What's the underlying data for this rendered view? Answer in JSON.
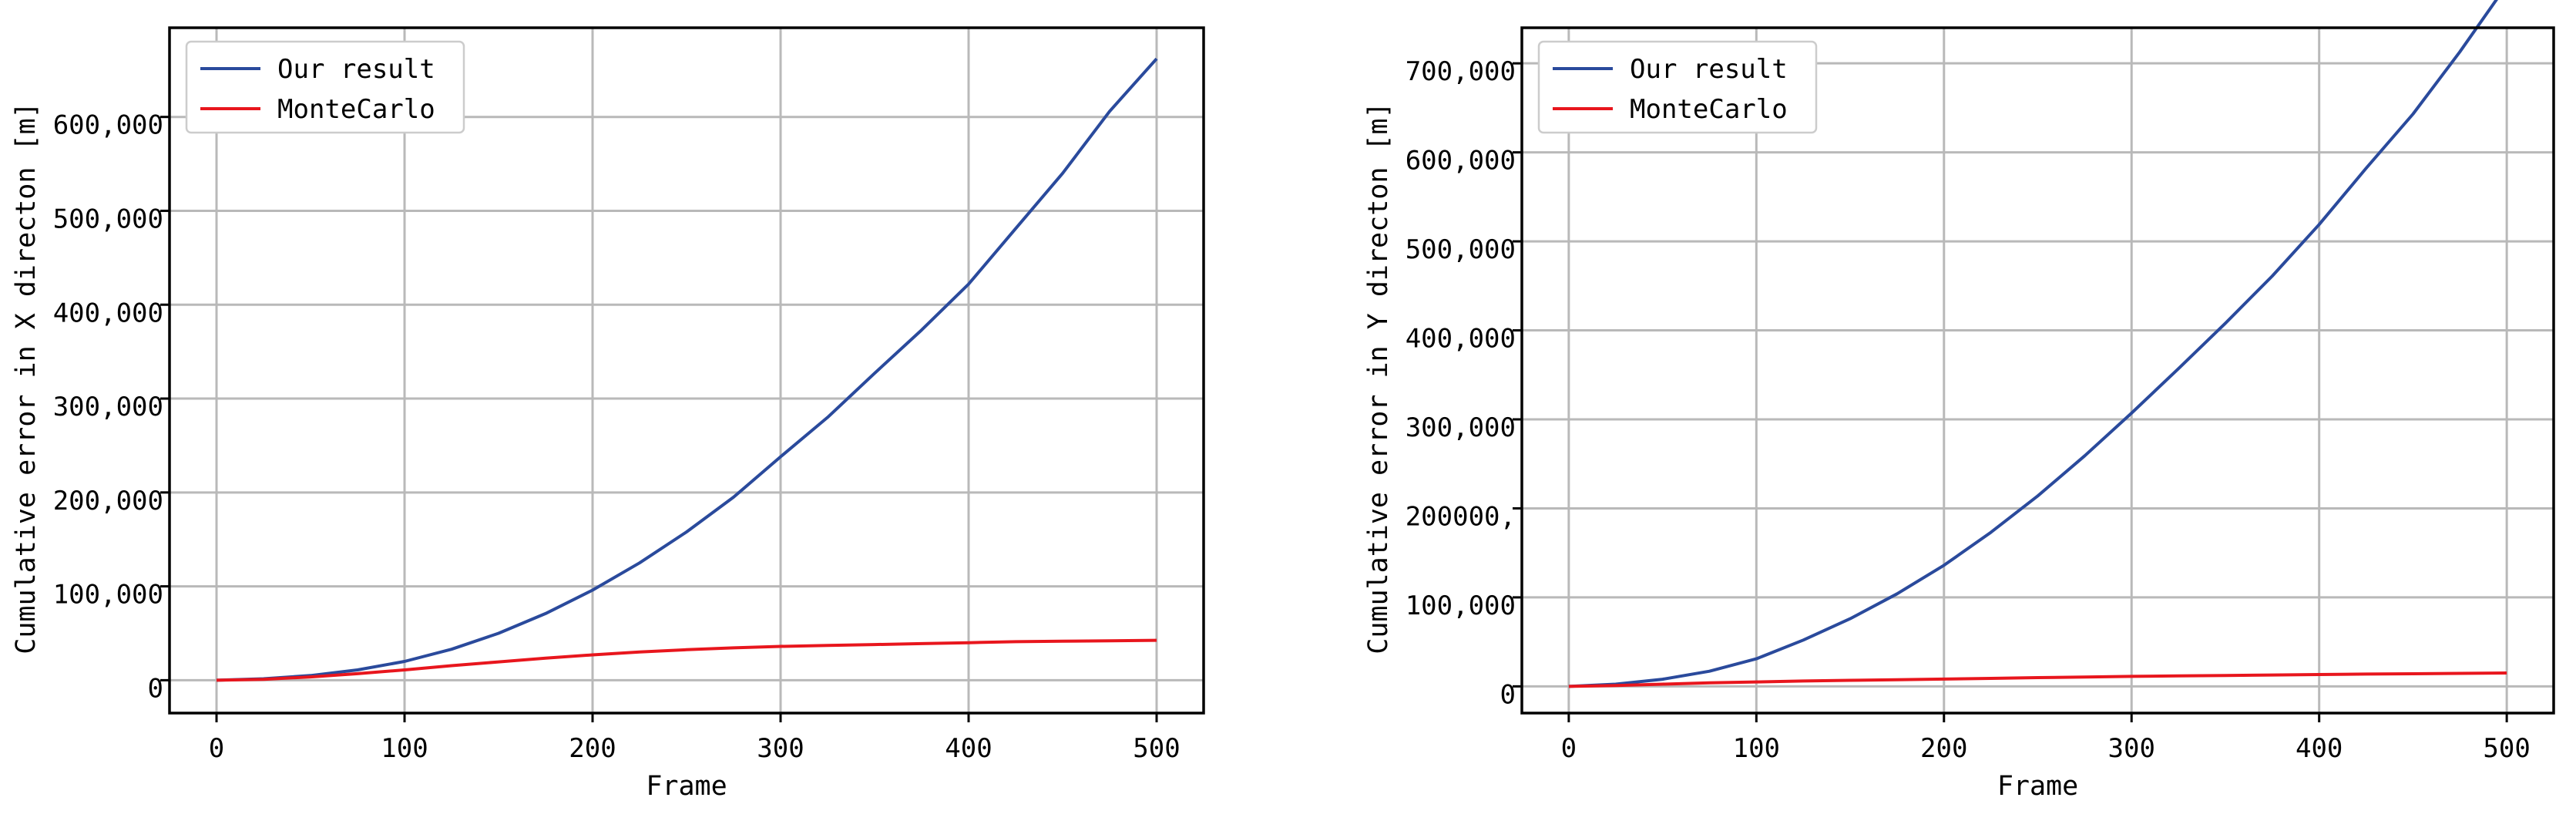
{
  "chart_data": [
    {
      "type": "line",
      "xlabel": "Frame",
      "ylabel": "Cumulative error in X directon [m]",
      "xlim": [
        -25,
        525
      ],
      "ylim": [
        -35000,
        695000
      ],
      "xticks": [
        0,
        100,
        200,
        300,
        400,
        500
      ],
      "xtick_labels": [
        "0",
        "100",
        "200",
        "300",
        "400",
        "500"
      ],
      "yticks": [
        0,
        100000,
        200000,
        300000,
        400000,
        500000,
        600000
      ],
      "ytick_labels": [
        "0",
        "100,000",
        "200,000",
        "300,000",
        "400,000",
        "500,000",
        "600,000"
      ],
      "grid": true,
      "legend_position": "top-left",
      "x": [
        0,
        25,
        50,
        75,
        100,
        125,
        150,
        175,
        200,
        225,
        250,
        275,
        300,
        325,
        350,
        375,
        400,
        425,
        450,
        475,
        500
      ],
      "series": [
        {
          "name": "Our result",
          "color": "#2a4a9c",
          "values": [
            0,
            1500,
            5000,
            11000,
            20000,
            33000,
            50000,
            71000,
            96000,
            125000,
            158000,
            195000,
            238000,
            280000,
            327000,
            373000,
            422000,
            481000,
            540000,
            606000,
            662000
          ]
        },
        {
          "name": "MonteCarlo",
          "color": "#e8161d",
          "values": [
            0,
            1000,
            3500,
            7000,
            11000,
            15500,
            19500,
            23500,
            27000,
            30000,
            32500,
            34500,
            36000,
            37000,
            38000,
            39000,
            40000,
            41000,
            41500,
            42000,
            42500
          ]
        }
      ]
    },
    {
      "type": "line",
      "xlabel": "Frame",
      "ylabel": "Cumulative error in Y directon [m]",
      "xlim": [
        -25,
        525
      ],
      "ylim": [
        -30000,
        740000
      ],
      "xticks": [
        0,
        100,
        200,
        300,
        400,
        500
      ],
      "xtick_labels": [
        "0",
        "100",
        "200",
        "300",
        "400",
        "500"
      ],
      "yticks": [
        0,
        100000,
        200000,
        300000,
        400000,
        500000,
        600000,
        700000
      ],
      "ytick_labels": [
        "0",
        "100,000",
        "200000,",
        "300,000",
        "400,000",
        "500,000",
        "600,000",
        "700,000"
      ],
      "grid": true,
      "legend_position": "top-left",
      "x": [
        0,
        25,
        50,
        75,
        100,
        125,
        150,
        175,
        200,
        225,
        250,
        275,
        300,
        325,
        350,
        375,
        400,
        425,
        450,
        475,
        500
      ],
      "series": [
        {
          "name": "Our result",
          "color": "#2a4a9c",
          "values": [
            0,
            2500,
            8000,
            17000,
            31000,
            52000,
            76000,
            104000,
            136000,
            173000,
            214000,
            259000,
            307000,
            357000,
            408000,
            461000,
            519000,
            582000,
            643000,
            713000,
            788000
          ]
        },
        {
          "name": "MonteCarlo",
          "color": "#e8161d",
          "values": [
            0,
            1000,
            2500,
            4000,
            5000,
            6000,
            6800,
            7500,
            8200,
            9000,
            9800,
            10500,
            11200,
            11800,
            12300,
            12800,
            13300,
            13800,
            14200,
            14600,
            15000
          ]
        }
      ]
    }
  ]
}
